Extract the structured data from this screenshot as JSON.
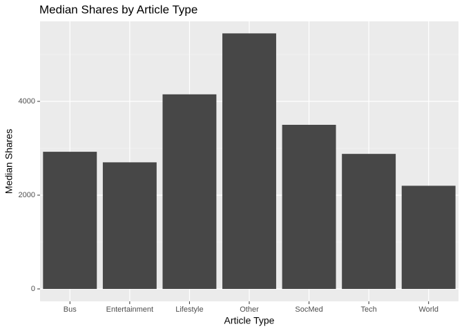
{
  "chart_data": {
    "type": "bar",
    "title": "Median Shares by Article Type",
    "x_label": "Article Type",
    "y_label": "Median Shares",
    "categories": [
      "Bus",
      "Entertainment",
      "Lifestyle",
      "Other",
      "SocMed",
      "Tech",
      "World"
    ],
    "values": [
      2925,
      2700,
      4150,
      5450,
      3500,
      2880,
      2200
    ],
    "color": "#474747",
    "ylim": [
      -265,
      5706
    ],
    "yticks": [
      0,
      2000,
      4000
    ],
    "yminor": [
      1000,
      3000,
      5000
    ],
    "grid": true
  }
}
